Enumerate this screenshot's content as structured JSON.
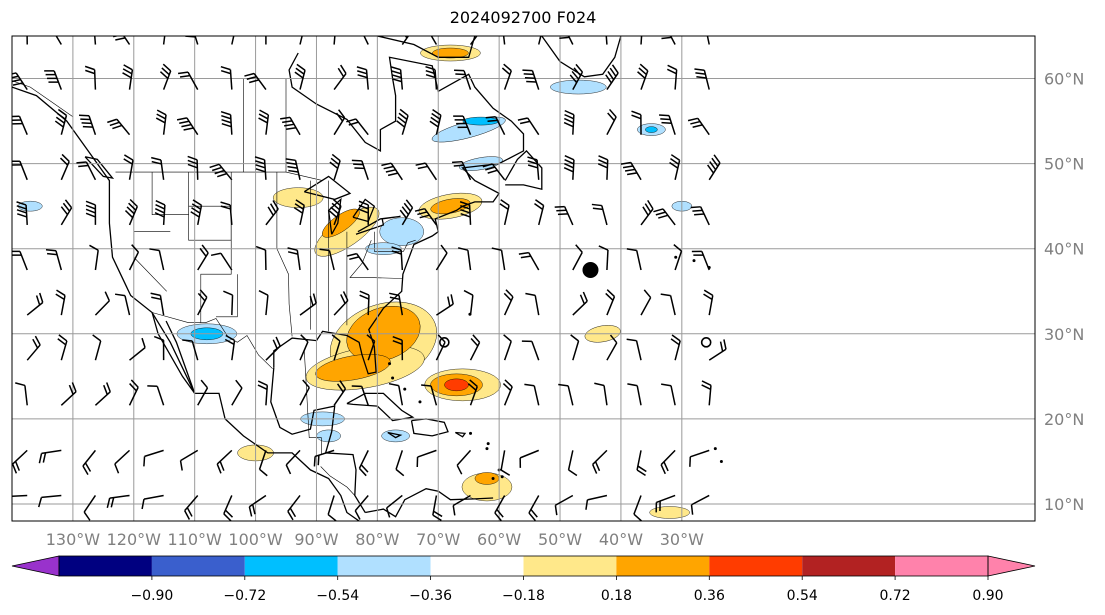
{
  "title": "2024092700 F024",
  "map": {
    "projection": "lat-lon",
    "lon_range": [
      -140,
      28
    ],
    "lat_range": [
      8,
      65
    ],
    "grid": true,
    "lon_labels": [
      "130°W",
      "120°W",
      "110°W",
      "100°W",
      "90°W",
      "80°W",
      "70°W",
      "60°W",
      "50°W",
      "40°W",
      "30°W"
    ],
    "lat_labels": [
      "60°N",
      "50°N",
      "40°N",
      "30°N",
      "20°N",
      "10°N"
    ],
    "wind_barbs": true,
    "markers": [
      {
        "name": "large-dot",
        "lon": -45,
        "lat": 37.5
      },
      {
        "name": "small-circle-1",
        "lon": -69,
        "lat": 29
      },
      {
        "name": "small-circle-2",
        "lon": -26,
        "lat": 29
      }
    ]
  },
  "colorbar": {
    "ticks": [
      "−0.90",
      "−0.72",
      "−0.54",
      "−0.36",
      "−0.18",
      "0.18",
      "0.36",
      "0.54",
      "0.72",
      "0.90"
    ],
    "colors": [
      "#9932cc",
      "#000080",
      "#3a5fcd",
      "#00bfff",
      "#b0e0ff",
      "#ffffff",
      "#ffe88a",
      "#ffa500",
      "#ff3c00",
      "#b22222",
      "#ff82ab"
    ]
  }
}
